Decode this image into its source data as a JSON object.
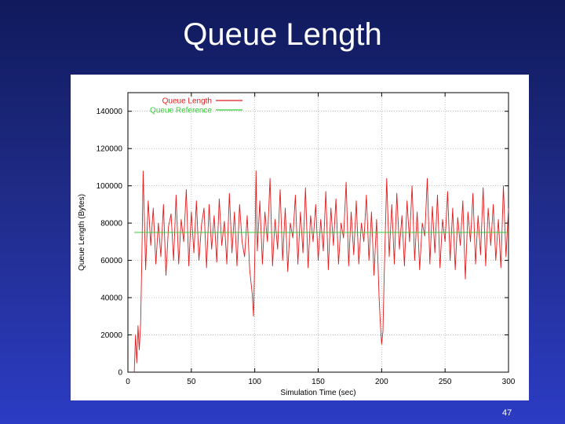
{
  "slide": {
    "title": "Queue Length",
    "page_number": "47"
  },
  "colors": {
    "background_top": "#101a5c",
    "background_bottom": "#2c3cc4",
    "queue_length": "#e31a1c",
    "queue_reference": "#33cc33"
  },
  "chart_data": {
    "type": "line",
    "xlabel": "Simulation Time (sec)",
    "ylabel": "Queue Length (Bytes)",
    "xlim": [
      0,
      300
    ],
    "ylim": [
      0,
      150000
    ],
    "xticks": [
      0,
      50,
      100,
      150,
      200,
      250,
      300
    ],
    "yticks": [
      0,
      20000,
      40000,
      60000,
      80000,
      100000,
      120000,
      140000
    ],
    "grid": true,
    "legend_position": "top-left",
    "series": [
      {
        "name": "Queue Length",
        "color": "#e31a1c",
        "x": [
          5,
          6,
          7,
          8,
          9,
          10,
          11,
          12,
          14,
          16,
          18,
          20,
          22,
          24,
          26,
          28,
          30,
          32,
          34,
          36,
          38,
          40,
          42,
          44,
          46,
          48,
          50,
          52,
          54,
          56,
          58,
          60,
          62,
          64,
          66,
          68,
          70,
          72,
          74,
          76,
          78,
          80,
          82,
          84,
          86,
          88,
          90,
          92,
          94,
          96,
          98,
          99,
          100,
          101,
          102,
          104,
          106,
          108,
          110,
          112,
          114,
          116,
          118,
          120,
          122,
          124,
          126,
          128,
          130,
          132,
          134,
          136,
          138,
          140,
          142,
          144,
          146,
          148,
          150,
          152,
          154,
          156,
          158,
          160,
          162,
          164,
          166,
          168,
          170,
          172,
          174,
          176,
          178,
          180,
          182,
          184,
          186,
          188,
          190,
          192,
          194,
          196,
          198,
          199,
          200,
          201,
          202,
          204,
          206,
          208,
          210,
          212,
          214,
          216,
          218,
          220,
          222,
          224,
          226,
          228,
          230,
          232,
          234,
          236,
          238,
          240,
          242,
          244,
          246,
          248,
          250,
          252,
          254,
          256,
          258,
          260,
          262,
          264,
          266,
          268,
          270,
          272,
          274,
          276,
          278,
          280,
          282,
          284,
          286,
          288,
          290,
          292,
          294,
          296,
          298,
          300
        ],
        "y": [
          0,
          20000,
          5000,
          25000,
          12000,
          26000,
          62000,
          108000,
          55000,
          92000,
          68000,
          88000,
          58000,
          80000,
          62000,
          90000,
          52000,
          78000,
          85000,
          60000,
          95000,
          58000,
          82000,
          70000,
          98000,
          57000,
          86000,
          64000,
          92000,
          60000,
          79000,
          88000,
          56000,
          90000,
          66000,
          84000,
          59000,
          93000,
          68000,
          81000,
          58000,
          96000,
          64000,
          86000,
          57000,
          90000,
          70000,
          62000,
          84000,
          55000,
          42000,
          30000,
          62000,
          108000,
          65000,
          92000,
          58000,
          86000,
          70000,
          104000,
          57000,
          82000,
          66000,
          98000,
          60000,
          88000,
          54000,
          80000,
          72000,
          95000,
          58000,
          86000,
          64000,
          99000,
          56000,
          84000,
          70000,
          90000,
          60000,
          82000,
          65000,
          97000,
          55000,
          88000,
          68000,
          93000,
          58000,
          80000,
          72000,
          102000,
          57000,
          86000,
          63000,
          92000,
          58000,
          80000,
          70000,
          95000,
          60000,
          86000,
          52000,
          82000,
          40000,
          26000,
          15000,
          22000,
          52000,
          104000,
          62000,
          90000,
          58000,
          96000,
          66000,
          84000,
          57000,
          92000,
          70000,
          100000,
          60000,
          86000,
          55000,
          80000,
          73000,
          104000,
          58000,
          89000,
          64000,
          95000,
          56000,
          82000,
          70000,
          97000,
          60000,
          88000,
          55000,
          83000,
          68000,
          92000,
          50000,
          86000,
          70000,
          96000,
          58000,
          84000,
          63000,
          99000,
          57000,
          88000,
          68000,
          90000,
          60000,
          82000,
          56000,
          100000,
          62000,
          88000
        ]
      },
      {
        "name": "Queue Reference",
        "color": "#33cc33",
        "x": [
          5,
          300
        ],
        "y": [
          75000,
          75000
        ]
      }
    ]
  }
}
